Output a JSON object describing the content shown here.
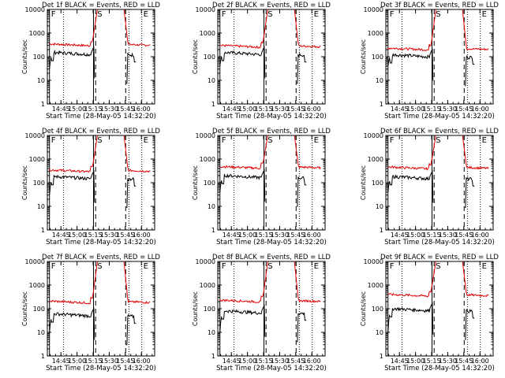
{
  "chart_data": {
    "type": "line",
    "colors": {
      "events": "#000000",
      "lld": "#e00000",
      "axes": "#000000"
    },
    "shared": {
      "title_suffix": "BLACK = Events, RED = LLD",
      "xlabel": "Start Time (28-May-05 14:32:20)",
      "ylabel": "Counts/sec",
      "y_scale": "log",
      "ylim": [
        1,
        10000
      ],
      "ytick_labels": [
        "1",
        "10",
        "100",
        "1000",
        "10000"
      ],
      "xlim_minutes_after_start": [
        0,
        100
      ],
      "xtick_labels": [
        "14:45",
        "15:00",
        "15:15",
        "15:30",
        "15:45",
        "16:00"
      ],
      "xtick_times_min": [
        12.67,
        27.67,
        42.67,
        57.67,
        72.67,
        87.67
      ],
      "markers": [
        {
          "letter": "F",
          "label_x_min": 2,
          "style": "solid",
          "line_x_min": 2
        },
        {
          "letter": "S",
          "label_x_min": 45,
          "style": "solid",
          "line_x_min": 43
        },
        {
          "letter": "E",
          "label_x_min": 88,
          "style": "dotted",
          "line_x_min": 88
        }
      ],
      "extra_lines": [
        {
          "style": "dotted",
          "x_min": 15
        },
        {
          "style": "dashed",
          "x_min": 45
        },
        {
          "style": "dashed",
          "x_min": 73
        },
        {
          "style": "dotted",
          "x_min": 76
        }
      ],
      "lld_shape": {
        "rise_start": 42,
        "rise_end": 47,
        "fall_start": 71,
        "fall_end": 75
      },
      "events_gaps": [
        [
          45,
          73
        ]
      ]
    },
    "panels": [
      {
        "title": "Det 1f",
        "events_level": 150,
        "lld_level": 300,
        "peak": 10000,
        "early_drop": 30
      },
      {
        "title": "Det 2f",
        "events_level": 150,
        "lld_level": 260,
        "peak": 10000,
        "early_drop": 40
      },
      {
        "title": "Det 3f",
        "events_level": 120,
        "lld_level": 200,
        "peak": 10000,
        "early_drop": 40
      },
      {
        "title": "Det 4f",
        "events_level": 180,
        "lld_level": 300,
        "peak": 10000,
        "early_drop": 30
      },
      {
        "title": "Det 5f",
        "events_level": 200,
        "lld_level": 420,
        "peak": 10000,
        "early_drop": 40
      },
      {
        "title": "Det 6f",
        "events_level": 180,
        "lld_level": 400,
        "peak": 10000,
        "early_drop": 40
      },
      {
        "title": "Det 7f",
        "events_level": 60,
        "lld_level": 180,
        "peak": 10000,
        "early_drop": 10
      },
      {
        "title": "Det 8f",
        "events_level": 80,
        "lld_level": 200,
        "peak": 10000,
        "early_drop": 10
      },
      {
        "title": "Det 9f",
        "events_level": 100,
        "lld_level": 350,
        "peak": 10000,
        "early_drop": 10
      }
    ]
  }
}
